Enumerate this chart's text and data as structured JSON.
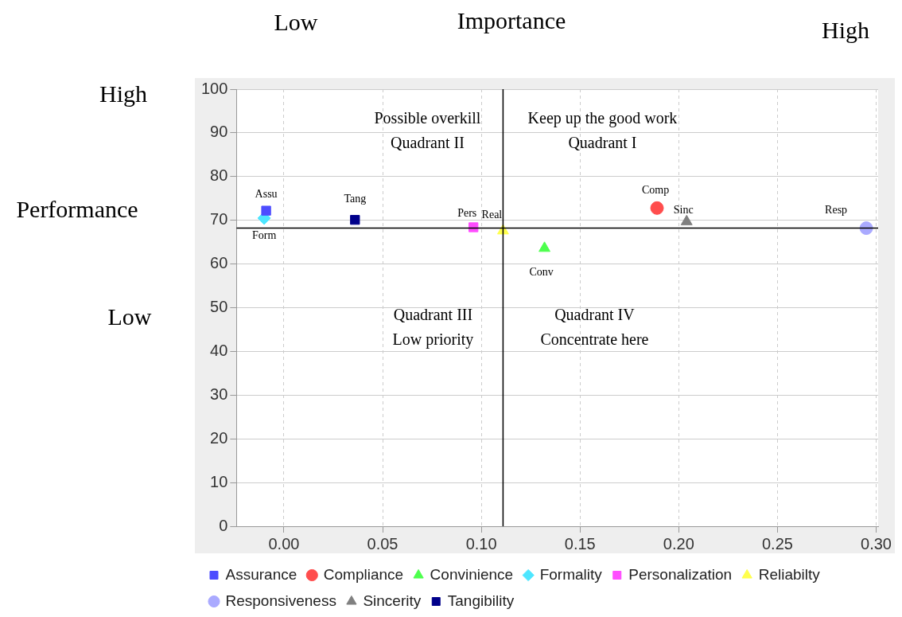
{
  "chart_data": {
    "type": "scatter",
    "xlabel": "Importance",
    "ylabel": "Performance",
    "xlim": [
      -0.024,
      0.301
    ],
    "xticks": [
      {
        "value": 0,
        "label": "0.00"
      },
      {
        "value": 0.05,
        "label": "0.05"
      },
      {
        "value": 0.1,
        "label": "0.10"
      },
      {
        "value": 0.15,
        "label": "0.15"
      },
      {
        "value": 0.2,
        "label": "0.20"
      },
      {
        "value": 0.25,
        "label": "0.25"
      },
      {
        "value": 0.3,
        "label": "0.30"
      }
    ],
    "ylim": [
      0,
      100
    ],
    "yticks": [
      0,
      10,
      20,
      30,
      40,
      50,
      60,
      70,
      80,
      90,
      100
    ],
    "grid": true,
    "legend": "bottom",
    "series": [
      {
        "name": "Assurance",
        "color": "#4d4dff",
        "marker": "square",
        "x": [
          -0.009
        ],
        "values": [
          72.2
        ]
      },
      {
        "name": "Compliance",
        "color": "#ff4d4d",
        "marker": "circle",
        "x": [
          0.189
        ],
        "values": [
          72.8
        ]
      },
      {
        "name": "Convinience",
        "color": "#4dff4d",
        "marker": "triangle",
        "x": [
          0.132
        ],
        "values": [
          63.6
        ]
      },
      {
        "name": "Formality",
        "color": "#4de6ff",
        "marker": "diamond",
        "x": [
          -0.01
        ],
        "values": [
          70.5
        ]
      },
      {
        "name": "Personalization",
        "color": "#ff4dff",
        "marker": "square",
        "x": [
          0.096
        ],
        "values": [
          68.4
        ]
      },
      {
        "name": "Reliabilty",
        "color": "#ffff4d",
        "marker": "triangle",
        "x": [
          0.111
        ],
        "values": [
          67.6
        ]
      },
      {
        "name": "Responsiveness",
        "color": "#aaaaff",
        "marker": "circle",
        "x": [
          0.295
        ],
        "values": [
          68.2
        ]
      },
      {
        "name": "Sincerity",
        "color": "#808080",
        "marker": "triangle",
        "x": [
          0.204
        ],
        "values": [
          69.7
        ]
      },
      {
        "name": "Tangibility",
        "color": "#00008b",
        "marker": "square",
        "x": [
          0.036
        ],
        "values": [
          70.1
        ]
      }
    ],
    "ref_lines": [
      {
        "axis": "x",
        "value": 0.111,
        "color": "#000000"
      },
      {
        "axis": "y",
        "value": 68.2,
        "color": "#000000"
      }
    ],
    "annotations": [
      "Low",
      "High",
      "High",
      "Low",
      {
        "text": "Assu",
        "x": -0.009,
        "y": 72.2
      },
      {
        "text": "Form",
        "x": -0.01,
        "y": 70.5
      },
      {
        "text": "Tang",
        "x": 0.036,
        "y": 70.1
      },
      {
        "text": "Pers",
        "x": 0.096,
        "y": 68.4
      },
      {
        "text": "Real",
        "x": 0.111,
        "y": 67.6
      },
      {
        "text": "Conv",
        "x": 0.132,
        "y": 63.6
      },
      {
        "text": "Comp",
        "x": 0.189,
        "y": 72.8
      },
      {
        "text": "Sinc",
        "x": 0.204,
        "y": 69.7
      },
      {
        "text": "Resp",
        "x": 0.295,
        "y": 68.2
      },
      "Possible overkill\nQuadrant II",
      "Keep up the good work\nQuadrant I",
      "Quadrant III\nLow priority",
      "Quadrant IV\nConcentrate here"
    ]
  }
}
